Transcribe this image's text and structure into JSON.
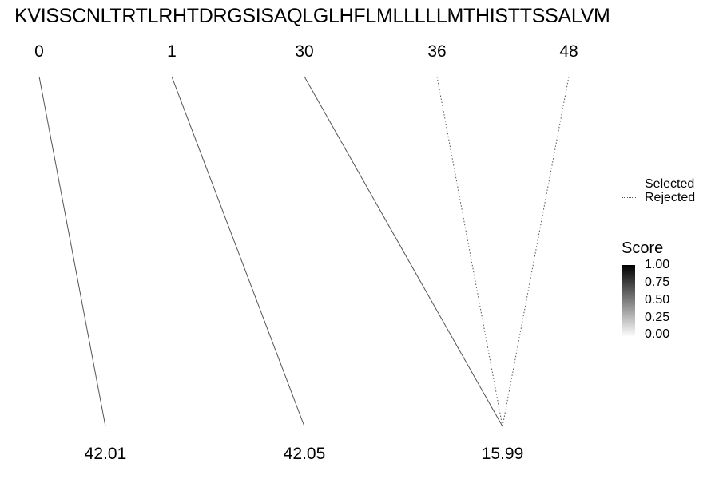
{
  "sequence": "KVISSCNLTRTLRHTDRGSISAQLGLHFLMLLLLLMTHISTTSSALVM",
  "top_labels": [
    "0",
    "1",
    "30",
    "36",
    "48"
  ],
  "bottom_labels": [
    "42.01",
    "42.05",
    "15.99"
  ],
  "connections": [
    {
      "from": "0",
      "to": "42.01",
      "status": "Selected"
    },
    {
      "from": "1",
      "to": "42.05",
      "status": "Selected"
    },
    {
      "from": "30",
      "to": "15.99",
      "status": "Selected"
    },
    {
      "from": "36",
      "to": "15.99",
      "status": "Rejected"
    },
    {
      "from": "48",
      "to": "15.99",
      "status": "Rejected"
    }
  ],
  "legend": {
    "linetype": [
      "Selected",
      "Rejected"
    ],
    "score_title": "Score",
    "score_ticks": [
      "1.00",
      "0.75",
      "0.50",
      "0.25",
      "0.00"
    ]
  },
  "colors": {
    "line": "#555555",
    "score_high": "#000000",
    "score_low": "#ffffff"
  }
}
